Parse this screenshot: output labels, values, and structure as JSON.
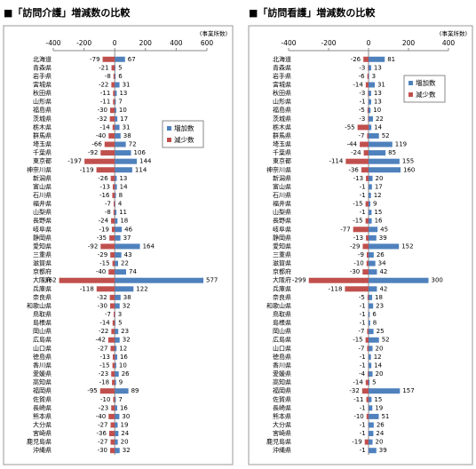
{
  "chart_data": [
    {
      "type": "bar",
      "title": "■「訪問介護」増減数の比較",
      "unit": "(事業所数)",
      "categories": [
        "北海道",
        "青森県",
        "岩手県",
        "宮城県",
        "秋田県",
        "山形県",
        "福島県",
        "茨城県",
        "栃木県",
        "群馬県",
        "埼玉県",
        "千葉県",
        "東京都",
        "神奈川県",
        "新潟県",
        "富山県",
        "石川県",
        "福井県",
        "山梨県",
        "長野県",
        "岐阜県",
        "静岡県",
        "愛知県",
        "三重県",
        "滋賀県",
        "京都府",
        "大阪府",
        "兵庫県",
        "奈良県",
        "和歌山県",
        "鳥取県",
        "島根県",
        "岡山県",
        "広島県",
        "山口県",
        "徳島県",
        "香川県",
        "愛媛県",
        "高知県",
        "福岡県",
        "佐賀県",
        "長崎県",
        "熊本県",
        "大分県",
        "宮崎県",
        "鹿児島県",
        "沖縄県"
      ],
      "series": [
        {
          "name": "増加数",
          "color": "#4f81bd",
          "values": [
            67,
            5,
            6,
            31,
            13,
            7,
            10,
            17,
            31,
            38,
            72,
            106,
            144,
            114,
            13,
            14,
            8,
            4,
            11,
            18,
            46,
            37,
            164,
            43,
            22,
            74,
            577,
            122,
            38,
            32,
            3,
            5,
            23,
            32,
            12,
            16,
            10,
            26,
            9,
            89,
            7,
            16,
            30,
            19,
            24,
            20,
            32
          ]
        },
        {
          "name": "減少数",
          "color": "#c0504d",
          "values": [
            -79,
            -21,
            -8,
            -22,
            -11,
            -11,
            -30,
            -32,
            -14,
            -40,
            -66,
            -92,
            -197,
            -119,
            -26,
            -13,
            -16,
            -7,
            -8,
            -24,
            -19,
            -35,
            -92,
            -29,
            -15,
            -40,
            -362,
            -118,
            -32,
            -30,
            -7,
            -14,
            -22,
            -42,
            -27,
            -13,
            -15,
            -23,
            -18,
            -95,
            -10,
            -23,
            -40,
            -27,
            -36,
            -27,
            -30
          ]
        }
      ],
      "xlim": [
        -400,
        600
      ],
      "xticks": [
        -400,
        -200,
        0,
        200,
        400,
        600
      ],
      "legend": "center right"
    },
    {
      "type": "bar",
      "title": "■「訪問看護」増減数の比較",
      "unit": "(事業所数)",
      "categories": [
        "北海道",
        "青森県",
        "岩手県",
        "宮城県",
        "秋田県",
        "山形県",
        "福島県",
        "茨城県",
        "栃木県",
        "群馬県",
        "埼玉県",
        "千葉県",
        "東京都",
        "神奈川県",
        "新潟県",
        "富山県",
        "石川県",
        "福井県",
        "山梨県",
        "長野県",
        "岐阜県",
        "静岡県",
        "愛知県",
        "三重県",
        "滋賀県",
        "京都府",
        "大阪府",
        "兵庫県",
        "奈良県",
        "和歌山県",
        "鳥取県",
        "島根県",
        "岡山県",
        "広島県",
        "山口県",
        "徳島県",
        "香川県",
        "愛媛県",
        "高知県",
        "福岡県",
        "佐賀県",
        "長崎県",
        "熊本県",
        "大分県",
        "宮崎県",
        "鹿児島県",
        "沖縄県"
      ],
      "series": [
        {
          "name": "増加数",
          "color": "#4f81bd",
          "values": [
            81,
            13,
            3,
            31,
            13,
            13,
            10,
            22,
            14,
            52,
            119,
            85,
            155,
            160,
            20,
            17,
            12,
            9,
            15,
            16,
            45,
            39,
            152,
            26,
            34,
            42,
            300,
            42,
            18,
            23,
            6,
            8,
            25,
            52,
            20,
            12,
            14,
            20,
            5,
            157,
            15,
            19,
            51,
            26,
            24,
            20,
            39
          ]
        },
        {
          "name": "減少数",
          "color": "#c0504d",
          "values": [
            -26,
            -3,
            -6,
            -14,
            -3,
            -1,
            -5,
            -3,
            -55,
            -7,
            -44,
            -24,
            -114,
            -36,
            -13,
            -1,
            -1,
            -15,
            -1,
            -15,
            -77,
            -13,
            -29,
            -9,
            -10,
            -30,
            -299,
            -118,
            -5,
            -1,
            -1,
            -1,
            -7,
            -15,
            -7,
            -1,
            -1,
            -4,
            -14,
            -32,
            -11,
            -1,
            -10,
            -1,
            -1,
            -19,
            -1
          ]
        }
      ],
      "xlim": [
        -400,
        400
      ],
      "xticks": [
        -400,
        -200,
        0,
        200,
        400
      ],
      "legend": "upper right"
    }
  ]
}
